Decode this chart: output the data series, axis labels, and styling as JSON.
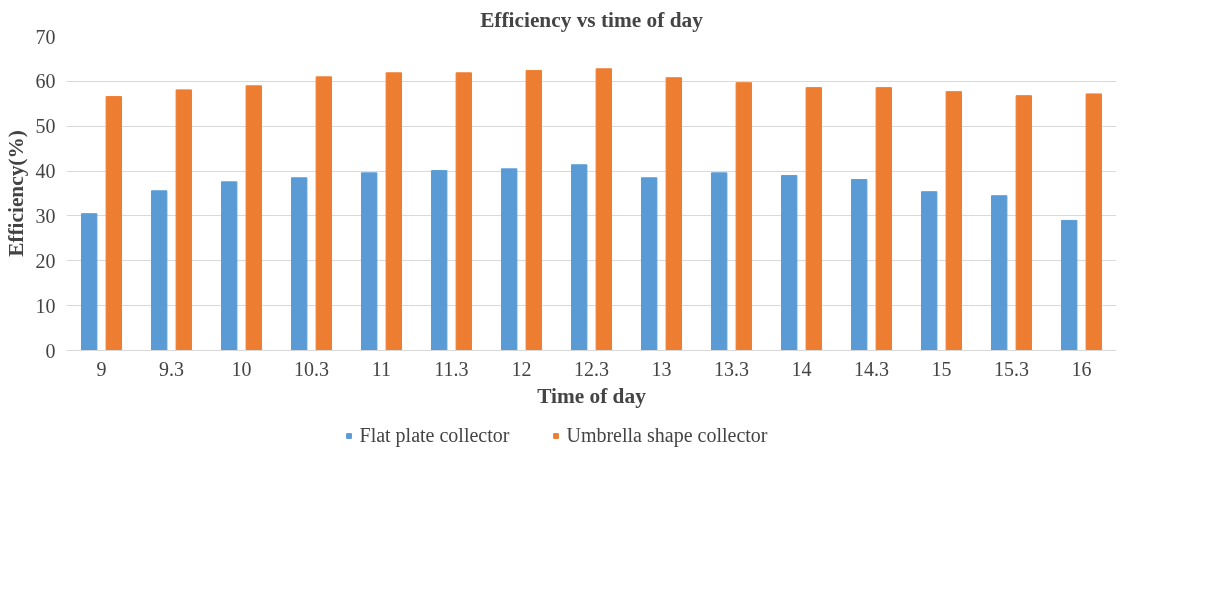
{
  "chart_data": {
    "type": "bar",
    "title": "Efficiency vs time of day",
    "xlabel": "Time of day",
    "ylabel": "Efficiency(%)",
    "categories": [
      "9",
      "9.3",
      "10",
      "10.3",
      "11",
      "11.3",
      "12",
      "12.3",
      "13",
      "13.3",
      "14",
      "14.3",
      "15",
      "15.3",
      "16"
    ],
    "series": [
      {
        "name": "Flat plate collector",
        "color": "#5b9bd5",
        "values": [
          30.5,
          35.6,
          37.6,
          38.5,
          39.6,
          40.1,
          40.5,
          41.4,
          38.5,
          39.6,
          39.0,
          38.1,
          35.4,
          34.5,
          29.0
        ]
      },
      {
        "name": "Umbrella shape collector",
        "color": "#ed7d31",
        "values": [
          56.6,
          58.1,
          59.0,
          61.0,
          61.9,
          61.9,
          62.4,
          62.8,
          60.8,
          59.7,
          58.6,
          58.6,
          57.7,
          56.8,
          57.2
        ]
      }
    ],
    "ylim": [
      0,
      70
    ],
    "yticks": [
      0,
      10,
      20,
      30,
      40,
      50,
      60,
      70
    ],
    "grid": "y",
    "legend": "bottom"
  }
}
